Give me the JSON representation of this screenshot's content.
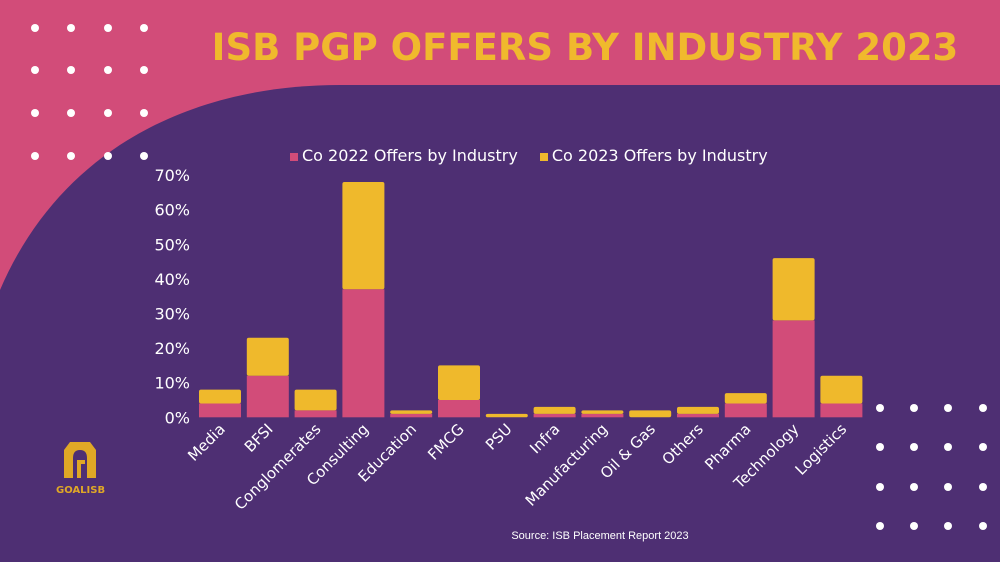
{
  "title": "ISB PGP OFFERS BY INDUSTRY 2023",
  "source": "Source: ISB Placement Report 2023",
  "logo_text": "GOALISB",
  "colors": {
    "background_top": "#d24c79",
    "background_main": "#4e2f73",
    "title": "#f0b92d",
    "series_2022": "#d24c79",
    "series_2023": "#efb92c"
  },
  "chart_data": {
    "type": "bar",
    "stacked": true,
    "categories": [
      "Media",
      "BFSI",
      "Conglomerates",
      "Consulting",
      "Education",
      "FMCG",
      "PSU",
      "Infra",
      "Manufacturing",
      "Oil & Gas",
      "Others",
      "Pharma",
      "Technology",
      "Logistics"
    ],
    "series": [
      {
        "name": "Co 2022 Offers by Industry",
        "color": "#d24c79",
        "values": [
          4,
          12,
          2,
          37,
          1,
          5,
          0,
          1,
          1,
          0,
          1,
          4,
          28,
          4
        ]
      },
      {
        "name": "Co 2023 Offers by Industry",
        "color": "#efb92c",
        "values": [
          4,
          11,
          6,
          31,
          1,
          10,
          1,
          2,
          1,
          2,
          2,
          3,
          18,
          8
        ]
      }
    ],
    "yticks": [
      "0%",
      "10%",
      "20%",
      "30%",
      "40%",
      "50%",
      "60%",
      "70%"
    ],
    "ylim": [
      0,
      70
    ],
    "legend": "top",
    "grid": false
  }
}
